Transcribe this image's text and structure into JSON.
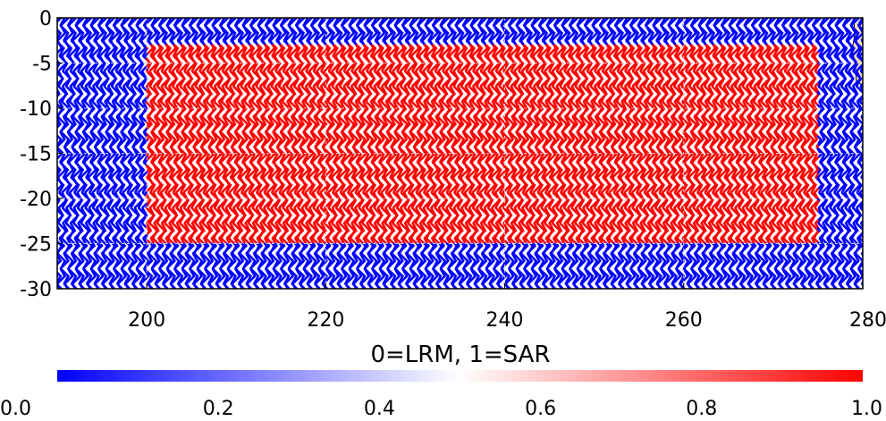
{
  "chart_data": {
    "type": "heatmap",
    "title": "",
    "xlabel": "",
    "ylabel": "",
    "xlim": [
      190,
      280
    ],
    "ylim": [
      -30,
      0
    ],
    "x_ticks": [
      "200",
      "220",
      "240",
      "260",
      "280"
    ],
    "x_tick_values": [
      200,
      220,
      240,
      260,
      280
    ],
    "y_ticks": [
      "0",
      "-5",
      "-10",
      "-15",
      "-20",
      "-25",
      "-30"
    ],
    "y_tick_values": [
      0,
      -5,
      -10,
      -15,
      -20,
      -25,
      -30
    ],
    "grid": true,
    "mode_regions": [
      {
        "value": 1,
        "lon": [
          200,
          275
        ],
        "lat": [
          -25,
          -3
        ]
      }
    ],
    "background_value": 0,
    "colorbar": {
      "label": "0=LRM, 1=SAR",
      "ticks": [
        "0.0",
        "0.2",
        "0.4",
        "0.6",
        "0.8",
        "1.0"
      ],
      "tick_values": [
        0.0,
        0.2,
        0.4,
        0.6,
        0.8,
        1.0
      ],
      "range": [
        0,
        1
      ],
      "low_color": "#0000ff",
      "mid_color": "#ffffff",
      "high_color": "#ff0000"
    },
    "colors": {
      "lrm": "#0000ff",
      "sar": "#ff0000",
      "land": "#f5deb3",
      "grid": "#cccccc"
    }
  }
}
